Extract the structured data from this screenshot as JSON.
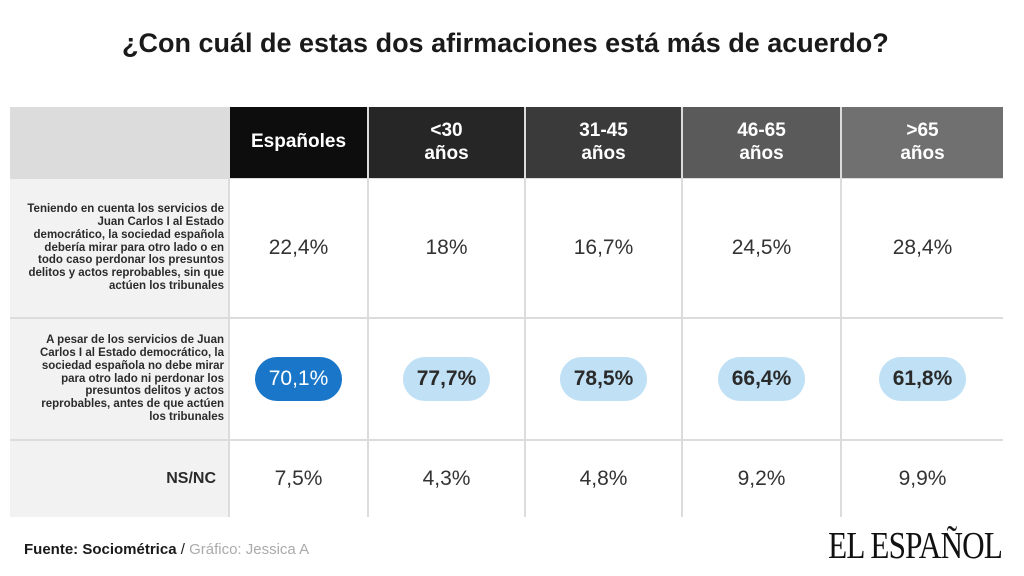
{
  "chart_data": {
    "type": "table",
    "title": "¿Con cuál de estas dos afirmaciones está más de acuerdo?",
    "columns": [
      "Españoles",
      "<30 años",
      "31-45 años",
      "46-65 años",
      ">65 años"
    ],
    "rows": [
      {
        "label": "Teniendo en cuenta los servicios de Juan Carlos I al Estado democrático, la sociedad española debería mirar para otro lado o en todo caso perdonar los presuntos delitos y actos reprobables, sin que actúen los tribunales",
        "values": [
          "22,4%",
          "18%",
          "16,7%",
          "24,5%",
          "28,4%"
        ],
        "highlighted": false
      },
      {
        "label": "A pesar de los servicios de Juan Carlos I al Estado democrático, la sociedad española no debe mirar para otro lado ni perdonar los presuntos delitos y actos reprobables, antes de que actúen los tribunales",
        "values": [
          "70,1%",
          "77,7%",
          "78,5%",
          "66,4%",
          "61,8%"
        ],
        "highlighted": true
      },
      {
        "label": "NS/NC",
        "values": [
          "7,5%",
          "4,3%",
          "4,8%",
          "9,2%",
          "9,9%"
        ],
        "highlighted": false
      }
    ],
    "numeric_values": [
      [
        22.4,
        18,
        16.7,
        24.5,
        28.4
      ],
      [
        70.1,
        77.7,
        78.5,
        66.4,
        61.8
      ],
      [
        7.5,
        4.3,
        4.8,
        9.2,
        9.9
      ]
    ]
  },
  "header": {
    "col0": "Españoles",
    "col1": "<30\naños",
    "col2": "31-45\naños",
    "col3": "46-65\naños",
    "col4": ">65\naños"
  },
  "colors": {
    "header": [
      "#0d0d0d",
      "#262626",
      "#3a3a3a",
      "#5a5a5a",
      "#707070"
    ],
    "highlight_main": "#1976c8",
    "highlight_other": "#bfe0f5"
  },
  "footer": {
    "source_label": "Fuente: Sociométrica",
    "separator": " / ",
    "credit": "Gráfico: Jessica A"
  },
  "logo": "EL ESPAÑOL"
}
